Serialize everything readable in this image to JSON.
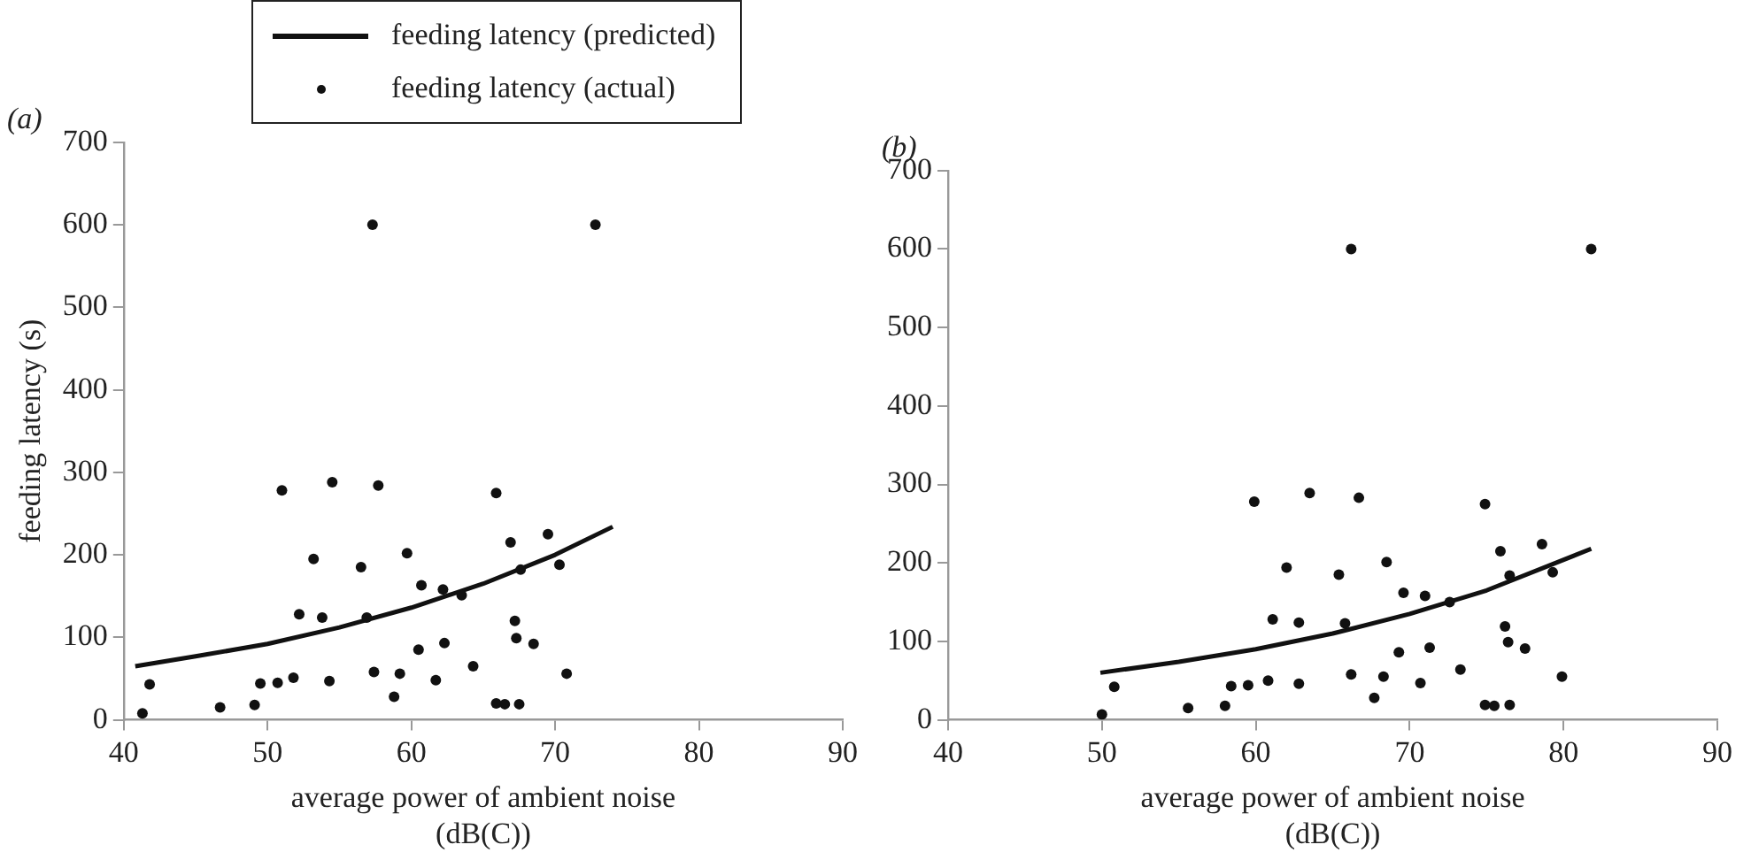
{
  "chart_data": [
    {
      "type": "scatter",
      "title": "(a)",
      "xlabel": "average power of ambient noise\n(dB(C))",
      "ylabel": "feeding latency (s)",
      "xlim": [
        40,
        90
      ],
      "xticks": [
        40,
        50,
        60,
        70,
        80,
        90
      ],
      "ylim": [
        0,
        700
      ],
      "yticks": [
        0,
        100,
        200,
        300,
        400,
        500,
        600,
        700
      ],
      "grid": false,
      "legend": "top",
      "series": [
        {
          "name": "feeding latency (predicted)",
          "type": "line",
          "color": "#111111",
          "marker": "none",
          "x": [
            40.8,
            45,
            50,
            55,
            60,
            65,
            70,
            74
          ],
          "values": [
            65,
            77,
            92,
            112,
            136,
            165,
            200,
            234
          ]
        },
        {
          "name": "feeding latency (actual)",
          "type": "scatter",
          "color": "#111111",
          "marker": "circle",
          "x": [
            41.3,
            41.8,
            46.7,
            49.1,
            49.5,
            50.7,
            51.0,
            51.8,
            52.2,
            53.2,
            53.8,
            54.3,
            54.5,
            56.5,
            56.9,
            57.3,
            57.4,
            57.7,
            58.8,
            59.2,
            59.7,
            60.5,
            60.7,
            61.7,
            62.2,
            62.3,
            63.5,
            64.3,
            65.9,
            65.9,
            66.5,
            66.9,
            67.2,
            67.3,
            67.5,
            67.6,
            68.5,
            69.5,
            70.3,
            70.8,
            72.8
          ],
          "values": [
            8,
            43,
            15,
            18,
            44,
            45,
            278,
            51,
            128,
            195,
            124,
            47,
            288,
            185,
            124,
            600,
            58,
            284,
            28,
            56,
            202,
            85,
            163,
            48,
            158,
            93,
            151,
            65,
            275,
            20,
            19,
            215,
            120,
            99,
            19,
            182,
            92,
            225,
            188,
            56,
            600
          ]
        }
      ]
    },
    {
      "type": "scatter",
      "title": "(b)",
      "xlabel": "average power of ambient noise\n(dB(C))",
      "xlim": [
        40,
        90
      ],
      "xticks": [
        40,
        50,
        60,
        70,
        80,
        90
      ],
      "ylim": [
        0,
        700
      ],
      "yticks": [
        0,
        100,
        200,
        300,
        400,
        500,
        600,
        700
      ],
      "grid": false,
      "series": [
        {
          "type": "line",
          "color": "#111111",
          "marker": "none",
          "x": [
            49.9,
            55,
            60,
            65,
            70,
            75,
            81.8
          ],
          "values": [
            60,
            74,
            90,
            110,
            135,
            165,
            218
          ]
        },
        {
          "type": "scatter",
          "color": "#111111",
          "marker": "circle",
          "x": [
            50.0,
            50.8,
            55.6,
            58.0,
            58.4,
            59.5,
            59.9,
            60.8,
            61.1,
            62.0,
            62.8,
            62.8,
            63.5,
            65.4,
            65.8,
            66.2,
            66.2,
            66.7,
            67.7,
            68.3,
            68.5,
            69.3,
            69.6,
            70.7,
            71.0,
            71.3,
            72.6,
            73.3,
            74.9,
            74.9,
            75.5,
            75.9,
            76.2,
            76.4,
            76.5,
            76.5,
            77.5,
            78.6,
            79.3,
            79.9,
            81.8
          ],
          "values": [
            7,
            42,
            15,
            18,
            43,
            44,
            278,
            50,
            128,
            194,
            124,
            46,
            289,
            185,
            123,
            600,
            58,
            283,
            28,
            55,
            201,
            86,
            162,
            47,
            158,
            92,
            150,
            64,
            275,
            19,
            18,
            215,
            119,
            99,
            19,
            184,
            91,
            224,
            188,
            55,
            600
          ]
        }
      ]
    }
  ]
}
